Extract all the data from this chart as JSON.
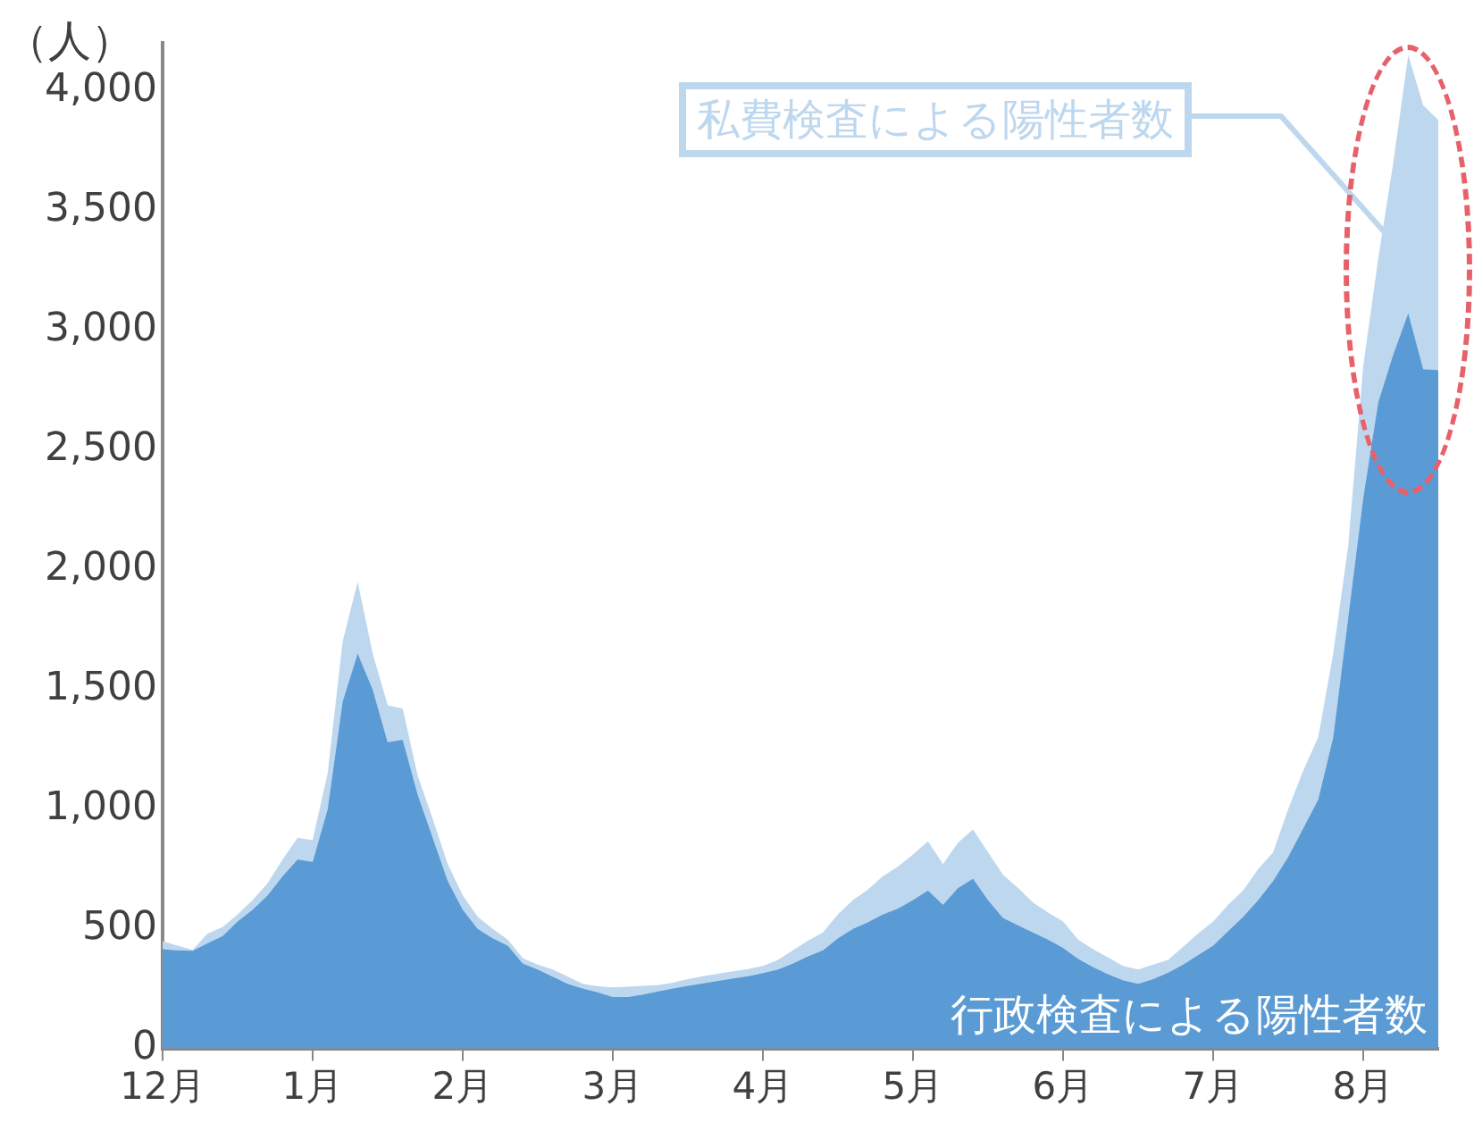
{
  "chart_data": {
    "type": "area",
    "stacked": true,
    "ylabel": "（人）",
    "legend": false,
    "grid": false,
    "categories": [
      "12月",
      null,
      null,
      null,
      null,
      null,
      null,
      null,
      null,
      null,
      "1月",
      null,
      null,
      null,
      null,
      null,
      null,
      null,
      null,
      null,
      "2月",
      null,
      null,
      null,
      null,
      null,
      null,
      null,
      null,
      null,
      "3月",
      null,
      null,
      null,
      null,
      null,
      null,
      null,
      null,
      null,
      "4月",
      null,
      null,
      null,
      null,
      null,
      null,
      null,
      null,
      null,
      "5月",
      null,
      null,
      null,
      null,
      null,
      null,
      null,
      null,
      null,
      "6月",
      null,
      null,
      null,
      null,
      null,
      null,
      null,
      null,
      null,
      "7月",
      null,
      null,
      null,
      null,
      null,
      null,
      null,
      null,
      null,
      "8月",
      null,
      null,
      null,
      null,
      null
    ],
    "ylim": [
      0,
      4200
    ],
    "yticks": [
      {
        "value": 0,
        "label": "0"
      },
      {
        "value": 500,
        "label": "500"
      },
      {
        "value": 1000,
        "label": "1,000"
      },
      {
        "value": 1500,
        "label": "1,500"
      },
      {
        "value": 2000,
        "label": "2,000"
      },
      {
        "value": 2500,
        "label": "2,500"
      },
      {
        "value": 3000,
        "label": "3,000"
      },
      {
        "value": 3500,
        "label": "3,500"
      },
      {
        "value": 4000,
        "label": "4,000"
      }
    ],
    "series": [
      {
        "name": "行政検査による陽性者数",
        "color": "#5b9bd5",
        "values": [
          415,
          410,
          408,
          440,
          470,
          530,
          580,
          640,
          720,
          790,
          780,
          1000,
          1450,
          1650,
          1500,
          1280,
          1290,
          1060,
          880,
          700,
          580,
          500,
          460,
          430,
          355,
          330,
          300,
          270,
          250,
          235,
          215,
          215,
          225,
          238,
          250,
          262,
          272,
          282,
          292,
          302,
          315,
          330,
          355,
          385,
          410,
          460,
          500,
          528,
          560,
          585,
          620,
          660,
          600,
          670,
          710,
          620,
          545,
          515,
          485,
          455,
          420,
          375,
          340,
          310,
          285,
          270,
          290,
          317,
          350,
          390,
          430,
          490,
          550,
          620,
          700,
          800,
          920,
          1040,
          1300,
          1800,
          2300,
          2700,
          2900,
          3072,
          2838,
          2834
        ]
      },
      {
        "name": "私費検査による陽性者数",
        "color": "#bdd7ee",
        "values": [
          33,
          20,
          4,
          40,
          37,
          30,
          40,
          50,
          70,
          90,
          90,
          150,
          250,
          300,
          150,
          154,
          130,
          80,
          80,
          70,
          60,
          50,
          40,
          25,
          22,
          20,
          30,
          30,
          20,
          25,
          40,
          43,
          37,
          26,
          25,
          28,
          30,
          30,
          30,
          30,
          30,
          40,
          55,
          65,
          75,
          100,
          120,
          136,
          160,
          175,
          190,
          205,
          170,
          190,
          205,
          200,
          180,
          155,
          125,
          113,
          110,
          80,
          75,
          70,
          60,
          60,
          60,
          53,
          75,
          90,
          100,
          110,
          110,
          130,
          120,
          200,
          240,
          260,
          350,
          300,
          550,
          600,
          800,
          1078,
          1102,
          1046
        ]
      }
    ]
  }
}
